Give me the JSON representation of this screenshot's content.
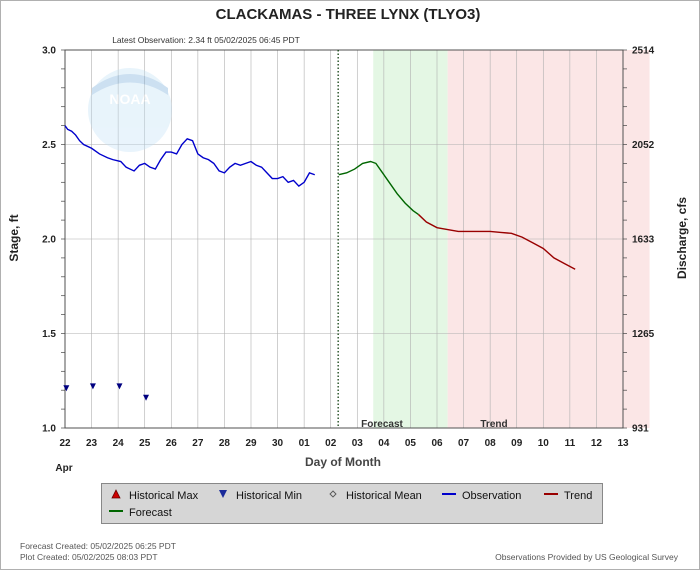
{
  "title": "CLACKAMAS - THREE LYNX  (TLYO3)",
  "subtitle": "Latest Observation: 2.34 ft 05/02/2025 06:45 PDT",
  "logo_text": "NOAA",
  "colors": {
    "observation": "#0000cc",
    "forecast": "#006600",
    "trend": "#990000",
    "forecast_band": "#e4f7e4",
    "trend_band": "#fbe6e6",
    "grid": "#b0b0b0",
    "historical_min": "#000080",
    "historical_max": "#990000"
  },
  "chart_data": {
    "type": "line",
    "xlabel": "Day of Month",
    "x_month_label": "Apr",
    "ylabel_left": "Stage, ft",
    "ylabel_right": "Discharge, cfs",
    "ylim": [
      1.0,
      3.0
    ],
    "y_ticks_left": [
      "1.0",
      "1.5",
      "2.0",
      "2.5",
      "3.0"
    ],
    "y_ticks_right": [
      "931",
      "1265",
      "1633",
      "2052",
      "2514"
    ],
    "x_ticks": [
      "22",
      "23",
      "24",
      "25",
      "26",
      "27",
      "28",
      "29",
      "30",
      "01",
      "02",
      "03",
      "04",
      "05",
      "06",
      "07",
      "08",
      "09",
      "10",
      "11",
      "12",
      "13"
    ],
    "grid": true,
    "regions": [
      {
        "label": "Forecast",
        "from_day": 2.6,
        "to_day": 5.4
      },
      {
        "label": "Trend",
        "from_day": 5.4,
        "to_day": 13
      }
    ],
    "latest_observation_day": 2.28,
    "series": [
      {
        "name": "Observation",
        "x_days_since_apr22": [
          0,
          0.1,
          0.25,
          0.4,
          0.55,
          0.7,
          1.0,
          1.3,
          1.6,
          1.8,
          2.1,
          2.3,
          2.6,
          2.8,
          3.0,
          3.2,
          3.4,
          3.6,
          3.8,
          4.0,
          4.2,
          4.4,
          4.6,
          4.8,
          5.0,
          5.2,
          5.4,
          5.6,
          5.8,
          6.0,
          6.2,
          6.4,
          6.6,
          6.8,
          7.0,
          7.2,
          7.4,
          7.6,
          7.8,
          8.0,
          8.2,
          8.4,
          8.6,
          8.8,
          9.0,
          9.2,
          9.4,
          9.6,
          9.8,
          10.0,
          10.2
        ],
        "values": [
          2.6,
          2.58,
          2.57,
          2.55,
          2.52,
          2.5,
          2.48,
          2.45,
          2.43,
          2.42,
          2.41,
          2.38,
          2.36,
          2.39,
          2.4,
          2.38,
          2.37,
          2.42,
          2.46,
          2.46,
          2.45,
          2.5,
          2.53,
          2.52,
          2.45,
          2.43,
          2.42,
          2.4,
          2.36,
          2.35,
          2.38,
          2.4,
          2.39,
          2.4,
          2.41,
          2.39,
          2.38,
          2.35,
          2.32,
          2.32,
          2.33,
          2.3,
          2.31,
          2.28,
          2.3,
          2.35,
          2.34
        ]
      },
      {
        "name": "Forecast",
        "x_days_since_apr22": [
          10.3,
          10.6,
          10.9,
          11.2,
          11.5,
          11.7,
          11.9,
          12.2,
          12.5,
          12.8,
          13.1,
          13.3
        ],
        "values": [
          2.34,
          2.35,
          2.37,
          2.4,
          2.41,
          2.4,
          2.36,
          2.3,
          2.24,
          2.19,
          2.15,
          2.13
        ]
      },
      {
        "name": "Trend",
        "x_days_since_apr22": [
          13.3,
          13.6,
          14.0,
          14.4,
          14.8,
          15.2,
          15.6,
          16.0,
          16.4,
          16.8,
          17.2,
          17.6,
          18.0,
          18.4,
          18.8,
          19.2
        ],
        "values": [
          2.13,
          2.09,
          2.06,
          2.05,
          2.04,
          2.04,
          2.04,
          2.04,
          2.035,
          2.03,
          2.01,
          1.98,
          1.95,
          1.9,
          1.87,
          1.84
        ]
      }
    ],
    "historical_min_points": [
      {
        "x_days_since_apr22": 0.05,
        "value": 1.21
      },
      {
        "x_days_since_apr22": 1.05,
        "value": 1.22
      },
      {
        "x_days_since_apr22": 2.05,
        "value": 1.22
      },
      {
        "x_days_since_apr22": 3.05,
        "value": 1.16
      }
    ]
  },
  "legend": {
    "historical_max": "Historical Max",
    "historical_min": "Historical Min",
    "historical_mean": "Historical Mean",
    "observation": "Observation",
    "trend": "Trend",
    "forecast": "Forecast"
  },
  "footer": {
    "forecast_created": "Forecast Created: 05/02/2025 06:25 PDT",
    "plot_created": "Plot Created: 05/02/2025 08:03 PDT",
    "provider": "Observations Provided by US Geological Survey"
  }
}
